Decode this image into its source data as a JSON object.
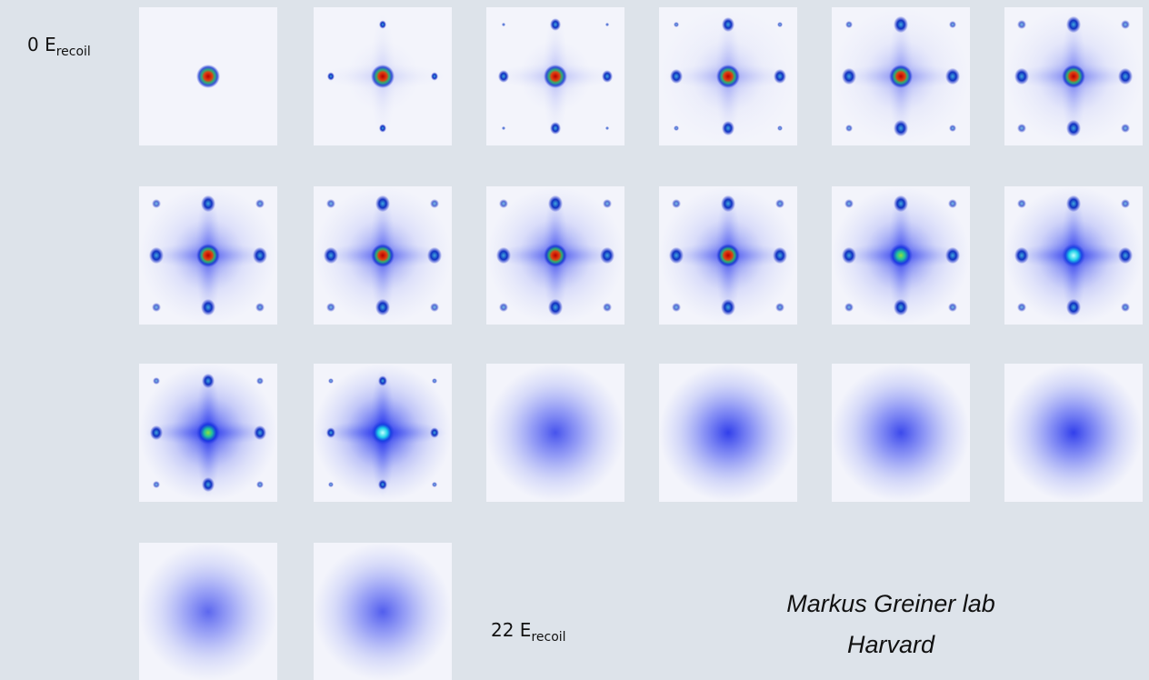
{
  "start_label": {
    "main": "0 E",
    "sub": "recoil"
  },
  "end_label": {
    "main": "22 E",
    "sub": "recoil"
  },
  "credit": {
    "line1": "Markus Greiner lab",
    "line2": "Harvard"
  }
}
